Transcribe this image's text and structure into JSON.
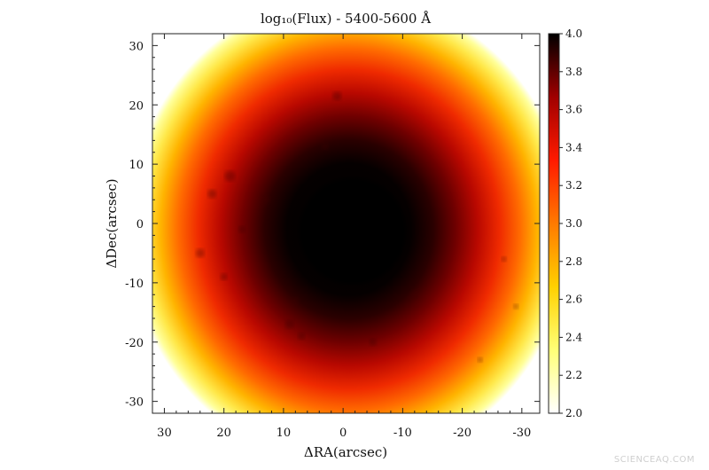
{
  "chart_data": {
    "type": "heatmap",
    "title": "log₁₀(Flux) - 5400-5600 Å",
    "xlabel": "ΔRA(arcsec)",
    "ylabel": "ΔDec(arcsec)",
    "xlim": [
      32,
      -33
    ],
    "ylim": [
      -32,
      32
    ],
    "x_ticks": [
      30,
      20,
      10,
      0,
      -10,
      -20,
      -30
    ],
    "y_ticks": [
      30,
      20,
      10,
      0,
      -10,
      -20,
      -30
    ],
    "colorbar": {
      "range": [
        2.0,
        4.0
      ],
      "ticks": [
        "4.0",
        "3.8",
        "3.6",
        "3.4",
        "3.2",
        "3.0",
        "2.8",
        "2.6",
        "2.4",
        "2.2",
        "2.0"
      ],
      "colors": [
        "#ffffff",
        "#ffff77",
        "#ffd000",
        "#ff7a00",
        "#ff1a00",
        "#a00000",
        "#000000"
      ]
    },
    "core": {
      "center_ra": -1.0,
      "center_dec": -1.0,
      "core_radius_arcsec": 9,
      "peak": 4.0
    },
    "background_level": 2.1
  },
  "watermark": "SCIENCEAQ.COM"
}
